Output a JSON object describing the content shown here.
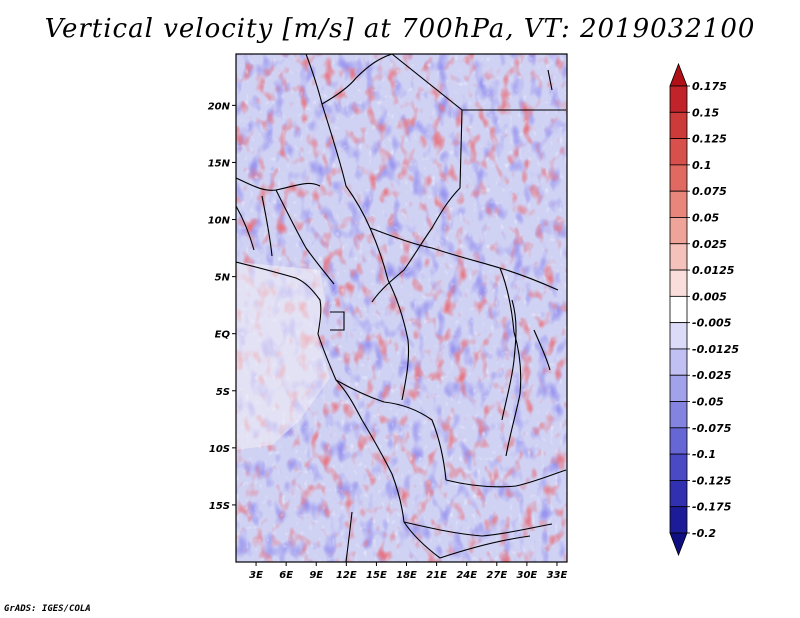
{
  "title": "Vertical velocity [m/s] at 700hPa, VT: 2019032100",
  "credit": "GrADS: IGES/COLA",
  "map": {
    "lon_ticks": [
      "3E",
      "6E",
      "9E",
      "12E",
      "15E",
      "18E",
      "21E",
      "24E",
      "27E",
      "30E",
      "33E"
    ],
    "lat_ticks": [
      "20N",
      "15N",
      "10N",
      "5N",
      "EQ",
      "5S",
      "10S",
      "15S"
    ],
    "lon_range": [
      1,
      34
    ],
    "lat_range": [
      -20,
      24.5
    ]
  },
  "legend": {
    "labels": [
      "0.175",
      "0.15",
      "0.125",
      "0.1",
      "0.075",
      "0.05",
      "0.025",
      "0.0125",
      "0.005",
      "-0.005",
      "-0.0125",
      "-0.025",
      "-0.05",
      "-0.075",
      "-0.1",
      "-0.125",
      "-0.175",
      "-0.2"
    ],
    "colors": [
      "#b01018",
      "#c0242a",
      "#cc3a3a",
      "#d8504c",
      "#e06a62",
      "#e8867c",
      "#efa49a",
      "#f4c2ba",
      "#f9dedb",
      "#ffffff",
      "#dcdcf8",
      "#c0c0f2",
      "#a2a2ea",
      "#8484e0",
      "#6666d4",
      "#4a4ac4",
      "#3030b0",
      "#1c1c98",
      "#0e0e80"
    ]
  }
}
